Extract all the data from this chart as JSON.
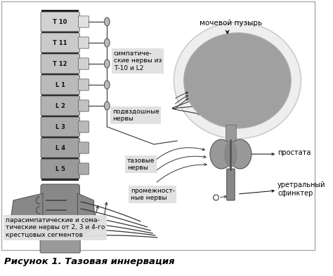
{
  "title": "Рисунок 1. Тазовая иннервация",
  "bg_color": "#ffffff",
  "border_color": "#999999",
  "fig_width": 4.74,
  "fig_height": 3.94,
  "labels": {
    "mocevoy_puzyr": "мочевой пузырь",
    "simpat": "симпатиче-\nские нервы из\nТ­10 и L2",
    "podvzd": "подвздошные\nнервы",
    "tazovye": "тазовые\nнервы",
    "promezhnost": "промежност-\nные нервы",
    "parasimpat": "парасимпатические и сома-\nтические нервы от 2, 3 и 4-го\nкрестцовых сегментов",
    "prostata": "простата",
    "uretralny": "уретральный\nсфинктер"
  },
  "spine_vertebrae": [
    "Т 10",
    "Т 11",
    "Т 12",
    "L 1",
    "L 2",
    "L 3",
    "L 4",
    "L 5"
  ],
  "label_font_size": 6.5,
  "title_font_size": 9.5
}
